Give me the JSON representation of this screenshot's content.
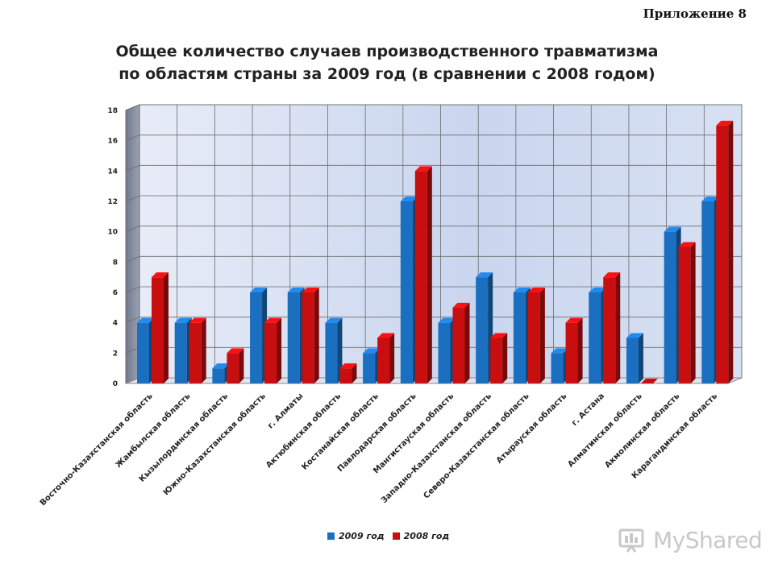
{
  "header": {
    "appendix": "Приложение 8",
    "title_line1": "Общее количество случаев производственного травматизма",
    "title_line2": "по областям страны за 2009 год (в сравнении с 2008 годом)"
  },
  "watermark": {
    "text": "MyShared"
  },
  "chart_data": {
    "type": "bar",
    "title": "Общее количество случаев производственного травматизма по областям страны за 2009 год (в сравнении с 2008 годом)",
    "xlabel": "",
    "ylabel": "",
    "ylim": [
      0,
      18
    ],
    "yticks": [
      "0",
      "2",
      "4",
      "6",
      "8",
      "10",
      "12",
      "14",
      "16",
      "18"
    ],
    "grid": true,
    "legend_position": "bottom",
    "categories": [
      "Восточно-Казахстанская область",
      "Жамбылская область",
      "Кызылординская область",
      "Южно-Казахстанская область",
      "г. Алматы",
      "Актюбинская область",
      "Костанайская область",
      "Павлодарская область",
      "Мангистауская область",
      "Западно-Казахстанская область",
      "Северо-Казахстанская область",
      "Атырауская область",
      "г. Астана",
      "Алматинская область",
      "Акмолинская область",
      "Карагандинская область"
    ],
    "series": [
      {
        "name": "2009 год",
        "color": "#1a6fc0",
        "values": [
          4,
          4,
          1,
          6,
          6,
          4,
          2,
          12,
          4,
          7,
          6,
          2,
          6,
          3,
          10,
          12
        ]
      },
      {
        "name": "2008 год",
        "color": "#c80e0e",
        "values": [
          7,
          4,
          2,
          4,
          6,
          1,
          3,
          14,
          5,
          3,
          6,
          4,
          7,
          0,
          9,
          17
        ]
      }
    ]
  }
}
